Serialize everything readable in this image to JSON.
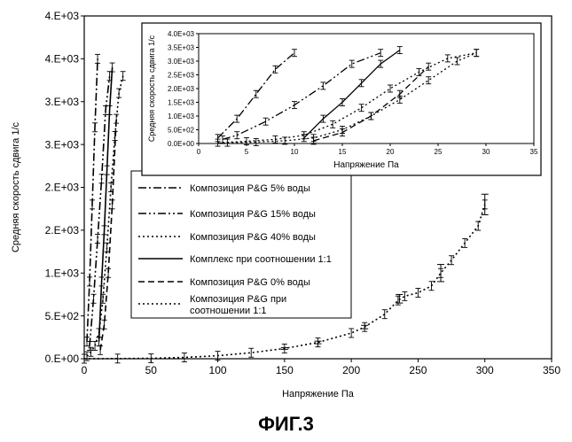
{
  "caption": "ФИГ.3",
  "chart_data": [
    {
      "type": "line",
      "xlabel": "Напряжение Па",
      "ylabel": "Средняя скорость сдвига 1/с",
      "xlim": [
        0,
        350
      ],
      "ylim": [
        0,
        4000
      ],
      "x_ticks": [
        0,
        50,
        100,
        150,
        200,
        250,
        300,
        350
      ],
      "y_ticks": [
        0,
        500,
        1000,
        1500,
        2000,
        2500,
        3000,
        3500,
        4000
      ],
      "x_tick_labels": [
        "0",
        "50",
        "100",
        "150",
        "200",
        "250",
        "300",
        "350"
      ],
      "y_tick_labels": [
        "0.E+00",
        "5.E+02",
        "1.E+03",
        "2.E+03",
        "2.E+03",
        "3.E+03",
        "3.E+03",
        "4.E+03",
        "4.E+03"
      ],
      "grid": false,
      "legend_position": "center-left",
      "series": [
        {
          "name": "Композиция P&G 5% воды",
          "style": "dashdot",
          "x": [
            2,
            4,
            6,
            8,
            10
          ],
          "y": [
            200,
            900,
            1800,
            2700,
            3500
          ]
        },
        {
          "name": "Композиция P&G 15% воды",
          "style": "dashdotdot",
          "x": [
            4,
            7,
            10,
            13,
            16,
            19
          ],
          "y": [
            150,
            700,
            1400,
            2100,
            2900,
            3300
          ]
        },
        {
          "name": "Композиция P&G 40% воды",
          "style": "dotted",
          "x": [
            2,
            5,
            8,
            11,
            14,
            17,
            20,
            23,
            26,
            29
          ],
          "y": [
            30,
            80,
            150,
            300,
            700,
            1300,
            2000,
            2600,
            3100,
            3300
          ]
        },
        {
          "name": "Комплекс при соотношении 1:1",
          "style": "solid",
          "x": [
            11,
            13,
            15,
            17,
            19,
            21
          ],
          "y": [
            200,
            900,
            1500,
            2200,
            2900,
            3400
          ]
        },
        {
          "name": "Композиция P&G 0% воды",
          "style": "dashed",
          "x": [
            12,
            15,
            18,
            21,
            24
          ],
          "y": [
            100,
            400,
            1000,
            1800,
            2800
          ]
        },
        {
          "name": "Композиция P&G при соотношении 1:1",
          "style": "dotted",
          "x": [
            0,
            25,
            50,
            75,
            100,
            125,
            150,
            175,
            200,
            210,
            225,
            235,
            240,
            250,
            260,
            267,
            275,
            285,
            295,
            300
          ],
          "y": [
            0,
            2,
            5,
            15,
            35,
            70,
            120,
            190,
            300,
            370,
            520,
            680,
            730,
            770,
            850,
            1000,
            1150,
            1350,
            1550,
            1800
          ],
          "error_x": [
            150,
            175,
            210,
            236,
            267,
            300
          ],
          "error_y": [
            120,
            190,
            370,
            700,
            1000,
            1800
          ],
          "error_size": [
            10,
            15,
            20,
            50,
            100,
            120
          ]
        }
      ]
    },
    {
      "type": "line",
      "inset": true,
      "xlabel": "Напряжение Па",
      "ylabel": "Средняя скорость сдвига 1/с",
      "xlim": [
        0,
        35
      ],
      "ylim": [
        0,
        4000
      ],
      "x_ticks": [
        0,
        5,
        10,
        15,
        20,
        25,
        30,
        35
      ],
      "y_ticks": [
        0,
        500,
        1000,
        1500,
        2000,
        2500,
        3000,
        3500,
        4000
      ],
      "x_tick_labels": [
        "0",
        "5",
        "10",
        "15",
        "20",
        "25",
        "30",
        "35"
      ],
      "y_tick_labels": [
        "0.0E+00",
        "5.0E+02",
        "1.0E+03",
        "1.5E+03",
        "2.0E+03",
        "2.5E+03",
        "3.0E+03",
        "3.5E+03",
        "4.0E+03"
      ],
      "grid": false,
      "series": [
        {
          "style": "dashdot",
          "x": [
            2,
            4,
            6,
            8,
            10
          ],
          "y": [
            200,
            900,
            1800,
            2700,
            3300
          ]
        },
        {
          "style": "dashdotdot",
          "x": [
            2.5,
            4,
            7,
            10,
            13,
            16,
            19
          ],
          "y": [
            150,
            300,
            800,
            1400,
            2100,
            2900,
            3300
          ]
        },
        {
          "style": "dotted",
          "x": [
            2,
            5,
            8,
            11,
            14,
            17,
            20,
            23,
            26,
            29
          ],
          "y": [
            30,
            80,
            150,
            300,
            700,
            1300,
            2000,
            2600,
            3100,
            3300
          ]
        },
        {
          "style": "solid",
          "x": [
            11,
            13,
            15,
            17,
            19,
            21
          ],
          "y": [
            200,
            900,
            1500,
            2200,
            2900,
            3400
          ]
        },
        {
          "style": "dashed",
          "x": [
            12,
            15,
            18,
            21,
            24
          ],
          "y": [
            100,
            400,
            1000,
            1800,
            2800
          ]
        },
        {
          "style": "dotted",
          "x": [
            3,
            6,
            9,
            12,
            15,
            18,
            21,
            24,
            27,
            29
          ],
          "y": [
            30,
            50,
            100,
            200,
            500,
            1000,
            1600,
            2300,
            3000,
            3300
          ]
        }
      ]
    }
  ]
}
